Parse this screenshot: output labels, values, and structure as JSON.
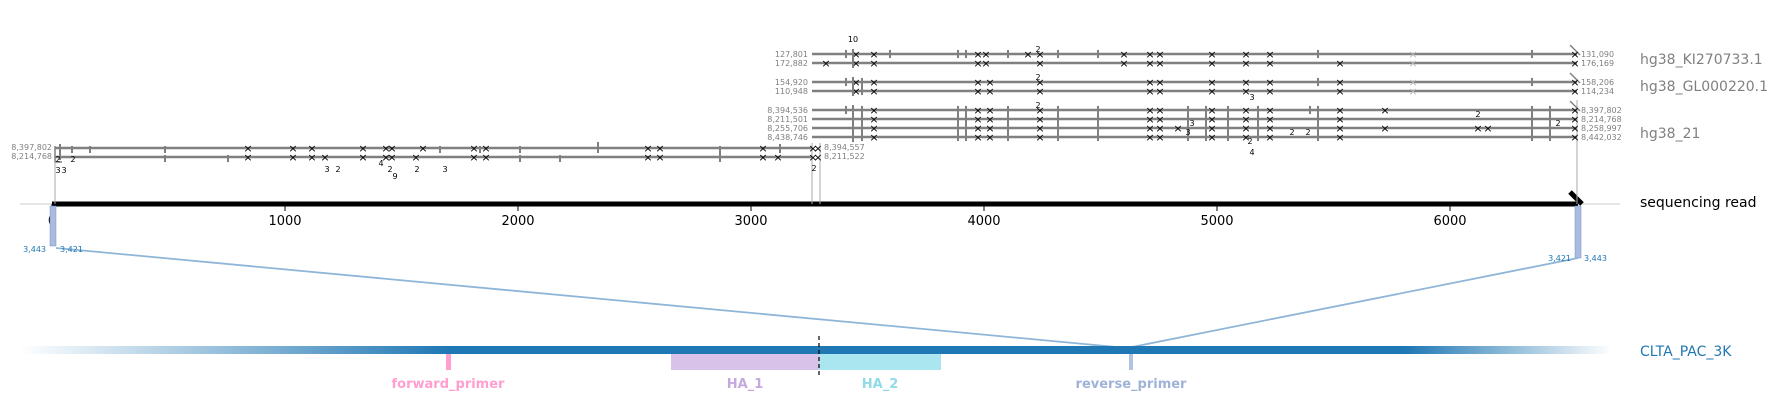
{
  "axis": {
    "ticks": [
      "0",
      "1000",
      "2000",
      "3000",
      "4000",
      "5000",
      "6000"
    ],
    "tick_values": [
      0,
      1000,
      2000,
      3000,
      4000,
      5000,
      6000
    ]
  },
  "read": {
    "label": "sequencing read"
  },
  "references": [
    {
      "label": "hg38_KI270733.1",
      "coords": [
        "127,801",
        "172,882",
        "131,090",
        "176,169"
      ]
    },
    {
      "label": "hg38_GL000220.1",
      "coords": [
        "154,920",
        "110,948",
        "158,206",
        "114,234"
      ]
    },
    {
      "label": "hg38_21",
      "coords": [
        "8,394,536",
        "8,211,501",
        "8,255,706",
        "8,438,746",
        "8,397,802",
        "8,214,768",
        "8,258,997",
        "8,442,032"
      ]
    }
  ],
  "left_alignment": {
    "coords": [
      "8,397,802",
      "8,214,768",
      "8,394,557",
      "8,211,522"
    ]
  },
  "target_connection": {
    "left": [
      "3,443",
      "3,421"
    ],
    "right": [
      "3,421",
      "3,443"
    ]
  },
  "target": {
    "label": "CLTA_PAC_3K",
    "features": [
      {
        "name": "forward_primer",
        "color": "#ff9fcf"
      },
      {
        "name": "HA_1",
        "color": "#c6a8e0"
      },
      {
        "name": "HA_2",
        "color": "#8fdbe8"
      },
      {
        "name": "reverse_primer",
        "color": "#9fb2d8"
      }
    ]
  },
  "annotations": [
    "10",
    "2",
    "2",
    "2",
    "3",
    "2",
    "2",
    "2",
    "2",
    "2",
    "2",
    "4",
    "3",
    "2",
    "3",
    "3",
    "3",
    "4",
    "2",
    "9",
    "2",
    "3",
    "2",
    "3",
    "2"
  ]
}
